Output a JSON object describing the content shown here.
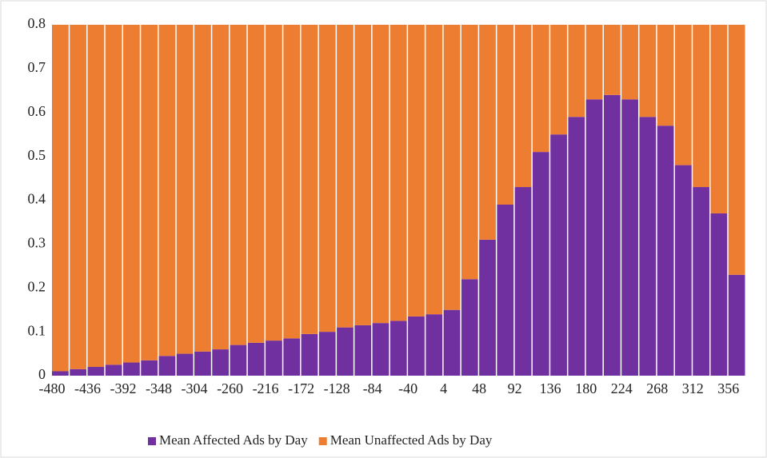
{
  "chart_data": {
    "type": "stacked_bar",
    "categories": [
      -480,
      null,
      -436,
      null,
      -392,
      null,
      -348,
      null,
      -304,
      null,
      -260,
      null,
      -216,
      null,
      -172,
      null,
      -128,
      null,
      -84,
      null,
      -40,
      null,
      4,
      null,
      48,
      null,
      92,
      null,
      136,
      null,
      180,
      null,
      224,
      null,
      268,
      null,
      312,
      null,
      356
    ],
    "series": [
      {
        "name": "Mean Affected Ads by Day",
        "color": "#7030a0",
        "values": [
          0.01,
          0.015,
          0.02,
          0.025,
          0.03,
          0.035,
          0.045,
          0.05,
          0.055,
          0.06,
          0.07,
          0.075,
          0.08,
          0.085,
          0.095,
          0.1,
          0.11,
          0.115,
          0.12,
          0.125,
          0.135,
          0.14,
          0.15,
          0.22,
          0.31,
          0.39,
          0.43,
          0.51,
          0.55,
          0.59,
          0.63,
          0.64,
          0.63,
          0.59,
          0.57,
          0.48,
          0.43,
          0.37,
          0.23
        ]
      },
      {
        "name": "Mean Unaffected Ads by Day",
        "color": "#ed7d31",
        "values": [
          0.79,
          0.785,
          0.78,
          0.775,
          0.77,
          0.765,
          0.755,
          0.75,
          0.745,
          0.74,
          0.73,
          0.725,
          0.72,
          0.715,
          0.705,
          0.7,
          0.69,
          0.685,
          0.68,
          0.675,
          0.665,
          0.66,
          0.65,
          0.58,
          0.49,
          0.41,
          0.37,
          0.29,
          0.25,
          0.21,
          0.17,
          0.16,
          0.17,
          0.21,
          0.23,
          0.32,
          0.37,
          0.43,
          0.57
        ]
      }
    ],
    "ylim": [
      0,
      0.8
    ],
    "yticks": [
      0,
      0.1,
      0.2,
      0.3,
      0.4,
      0.5,
      0.6,
      0.7,
      0.8
    ],
    "grid": false,
    "legend": "bottom"
  }
}
